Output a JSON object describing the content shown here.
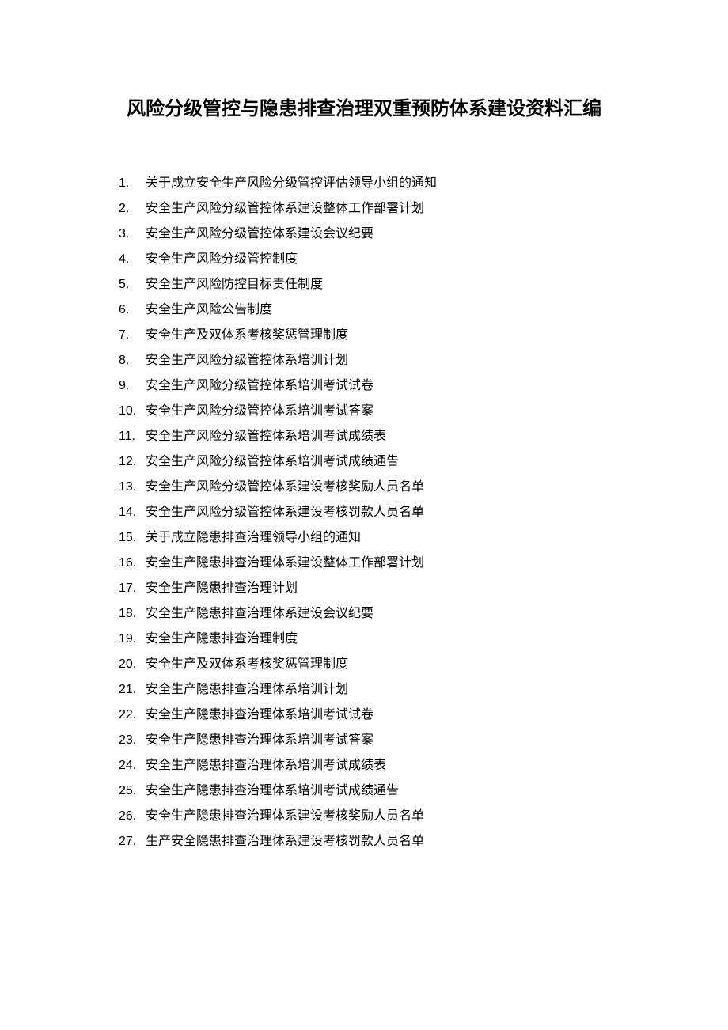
{
  "document": {
    "title": "风险分级管控与隐患排查治理双重预防体系建设资料汇编",
    "title_fontsize": 24,
    "title_fontweight": "bold",
    "text_color": "#000000",
    "background_color": "#ffffff",
    "body_fontsize": 16,
    "line_height": 2.0,
    "items": [
      {
        "number": "1.",
        "text": "关于成立安全生产风险分级管控评估领导小组的通知"
      },
      {
        "number": "2.",
        "text": "安全生产风险分级管控体系建设整体工作部署计划"
      },
      {
        "number": "3.",
        "text": "安全生产风险分级管控体系建设会议纪要"
      },
      {
        "number": "4.",
        "text": "安全生产风险分级管控制度"
      },
      {
        "number": "5.",
        "text": "安全生产风险防控目标责任制度"
      },
      {
        "number": "6.",
        "text": "安全生产风险公告制度"
      },
      {
        "number": "7.",
        "text": "安全生产及双体系考核奖惩管理制度"
      },
      {
        "number": "8.",
        "text": "安全生产风险分级管控体系培训计划"
      },
      {
        "number": "9.",
        "text": "安全生产风险分级管控体系培训考试试卷"
      },
      {
        "number": "10.",
        "text": "安全生产风险分级管控体系培训考试答案"
      },
      {
        "number": "11.",
        "text": "安全生产风险分级管控体系培训考试成绩表"
      },
      {
        "number": "12.",
        "text": "安全生产风险分级管控体系培训考试成绩通告"
      },
      {
        "number": "13.",
        "text": "安全生产风险分级管控体系建设考核奖励人员名单"
      },
      {
        "number": "14.",
        "text": "安全生产风险分级管控体系建设考核罚款人员名单"
      },
      {
        "number": "15.",
        "text": "关于成立隐患排查治理领导小组的通知"
      },
      {
        "number": "16.",
        "text": "安全生产隐患排查治理体系建设整体工作部署计划"
      },
      {
        "number": "17.",
        "text": "安全生产隐患排查治理计划"
      },
      {
        "number": "18.",
        "text": "安全生产隐患排查治理体系建设会议纪要"
      },
      {
        "number": "19.",
        "text": "安全生产隐患排查治理制度"
      },
      {
        "number": "20.",
        "text": "安全生产及双体系考核奖惩管理制度"
      },
      {
        "number": "21.",
        "text": "安全生产隐患排查治理体系培训计划"
      },
      {
        "number": "22.",
        "text": "安全生产隐患排查治理体系培训考试试卷"
      },
      {
        "number": "23.",
        "text": "安全生产隐患排查治理体系培训考试答案"
      },
      {
        "number": "24.",
        "text": "安全生产隐患排查治理体系培训考试成绩表"
      },
      {
        "number": "25.",
        "text": "安全生产隐患排查治理体系培训考试成绩通告"
      },
      {
        "number": "26.",
        "text": "安全生产隐患排查治理体系建设考核奖励人员名单"
      },
      {
        "number": "27.",
        "text": "生产安全隐患排查治理体系建设考核罚款人员名单"
      }
    ]
  }
}
